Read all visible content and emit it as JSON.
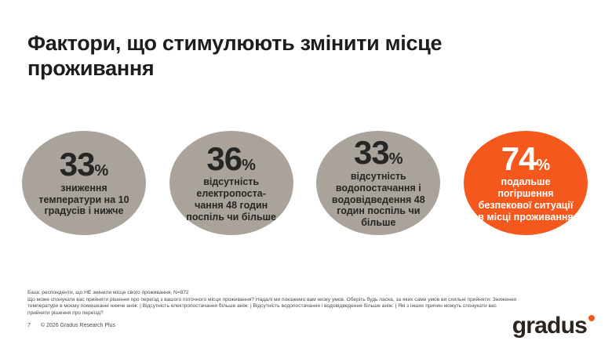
{
  "header": {
    "title": "Фактори, що стимулюють змінити місце проживання"
  },
  "chart_data": {
    "type": "bubble",
    "title": "Фактори, що стимулюють змінити місце проживання",
    "unit": "%",
    "values": [
      33,
      36,
      33,
      74
    ],
    "categories": [
      "зниження температури на 10 градусів і нижче",
      "відсутність електропостачання 48 годин поспіль чи більше",
      "відсутність водопостачання і водовідведення 48 годин поспіль чи більше",
      "подальше погіршення безпекової ситуації в місці проживання"
    ],
    "highlight_index": 3,
    "bubbles": [
      {
        "value": "33",
        "unit": "%",
        "label": "зниження\nтемператури на 10\nградусів і нижче",
        "color": "#A9A39B",
        "text_color": "#262624"
      },
      {
        "value": "36",
        "unit": "%",
        "label": "відсутність\nелектропоста-\nчання 48 годин\nпоспіль чи більше",
        "color": "#A9A39B",
        "text_color": "#262624"
      },
      {
        "value": "33",
        "unit": "%",
        "label": "відсутність\nводопостачання і\nводовідведення 48\nгодин поспіль чи\nбільше",
        "color": "#A9A39B",
        "text_color": "#262624"
      },
      {
        "value": "74",
        "unit": "%",
        "label": "подальше\nпогіршення\nбезпекової ситуації\nв місці проживання",
        "color": "#F4581C",
        "text_color": "#FFFFFF"
      }
    ]
  },
  "footnote": {
    "base": "База: респонденти, що НЕ змінили місце свого проживання, N=872",
    "question": "Що може спонукати вас прийняти рішення про переїзд з вашого поточного місця проживання? Надалі ми покажемо вам низку умов. Оберіть будь ласка, за яких саме умов ви схильні прийняти: Зниження температури в моєму помешканні нижче аніж: | Відсутність електропостачання більше аніж: | Відсутність водопостачання і водовідведення більше аніж: | Які з інших причин можуть спонукати вас прийняти рішення про переїзд?"
  },
  "footer": {
    "page_number": "7",
    "copyright": "© 2026 Gradus Research Plus"
  },
  "logo": {
    "text": "gradus",
    "dot_color": "#F4581C"
  },
  "colors": {
    "bubble_gray": "#A9A39B",
    "accent_orange": "#F4581C",
    "title_text": "#1D1D1B",
    "footnote_text": "#4A4A4A"
  }
}
